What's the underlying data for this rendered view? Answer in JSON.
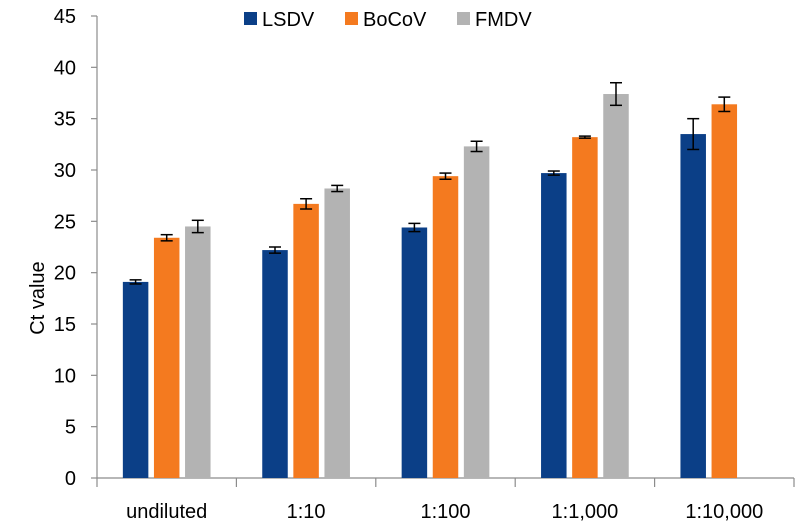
{
  "chart_data": {
    "type": "bar",
    "title": "",
    "xlabel": "",
    "ylabel": "Ct value",
    "ylim": [
      0,
      45
    ],
    "yticks": [
      0,
      5,
      10,
      15,
      20,
      25,
      30,
      35,
      40,
      45
    ],
    "grid": false,
    "legend_position": "top",
    "categories": [
      "undiluted",
      "1:10",
      "1:100",
      "1:1,000",
      "1:10,000"
    ],
    "series": [
      {
        "name": "LSDV",
        "color": "#0b3f87",
        "values": [
          19.1,
          22.2,
          24.4,
          29.7,
          33.5
        ],
        "errors": [
          0.2,
          0.3,
          0.4,
          0.2,
          1.5
        ]
      },
      {
        "name": "BoCoV",
        "color": "#f47a1f",
        "values": [
          23.4,
          26.7,
          29.4,
          33.2,
          36.4
        ],
        "errors": [
          0.3,
          0.5,
          0.3,
          0.1,
          0.7
        ]
      },
      {
        "name": "FMDV",
        "color": "#b3b3b3",
        "values": [
          24.5,
          28.2,
          32.3,
          37.4,
          null
        ],
        "errors": [
          0.6,
          0.3,
          0.5,
          1.1,
          null
        ]
      }
    ]
  }
}
